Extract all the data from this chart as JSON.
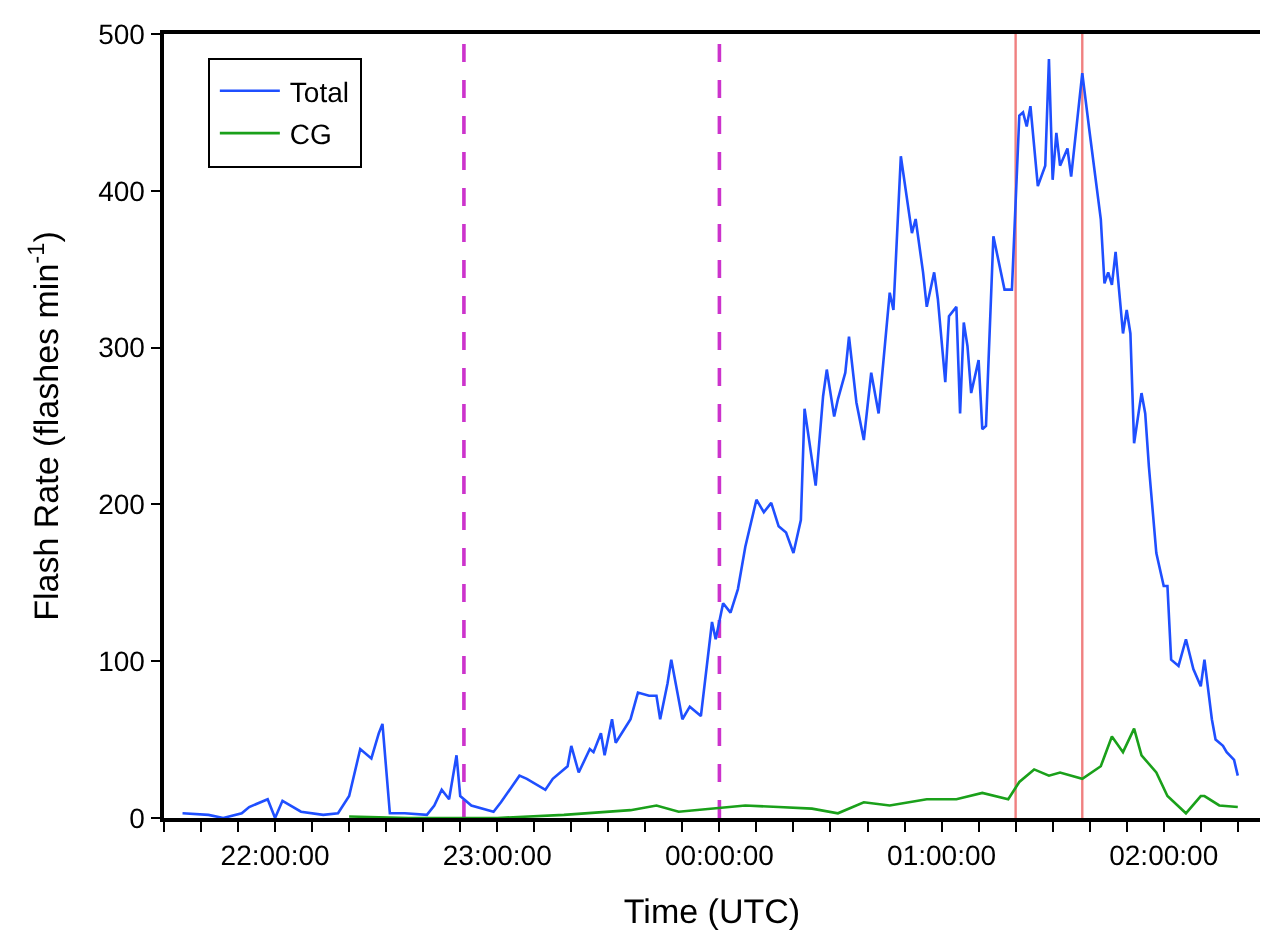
{
  "chart_data": {
    "type": "line",
    "xlabel": "Time (UTC)",
    "ylabel": "Flash Rate (flashes min$^{-1}$)",
    "xlim": [
      "2000-01-01T21:30",
      "2000-01-02T02:26"
    ],
    "ylim": [
      0,
      500
    ],
    "xticks": [
      {
        "value": "2000-01-01T21:30",
        "label": null
      },
      {
        "value": "2000-01-01T21:40",
        "label": null
      },
      {
        "value": "2000-01-01T21:50",
        "label": null
      },
      {
        "value": "2000-01-01T22:00",
        "label": "22:00:00"
      },
      {
        "value": "2000-01-01T22:10",
        "label": null
      },
      {
        "value": "2000-01-01T22:20",
        "label": null
      },
      {
        "value": "2000-01-01T22:30",
        "label": null
      },
      {
        "value": "2000-01-01T22:40",
        "label": null
      },
      {
        "value": "2000-01-01T22:50",
        "label": null
      },
      {
        "value": "2000-01-01T23:00",
        "label": "23:00:00"
      },
      {
        "value": "2000-01-01T23:10",
        "label": null
      },
      {
        "value": "2000-01-01T23:20",
        "label": null
      },
      {
        "value": "2000-01-01T23:30",
        "label": null
      },
      {
        "value": "2000-01-01T23:40",
        "label": null
      },
      {
        "value": "2000-01-01T23:50",
        "label": null
      },
      {
        "value": "2000-01-02T00:00",
        "label": "00:00:00"
      },
      {
        "value": "2000-01-02T00:10",
        "label": null
      },
      {
        "value": "2000-01-02T00:20",
        "label": null
      },
      {
        "value": "2000-01-02T00:30",
        "label": null
      },
      {
        "value": "2000-01-02T00:40",
        "label": null
      },
      {
        "value": "2000-01-02T00:50",
        "label": null
      },
      {
        "value": "2000-01-02T01:00",
        "label": "01:00:00"
      },
      {
        "value": "2000-01-02T01:10",
        "label": null
      },
      {
        "value": "2000-01-02T01:20",
        "label": null
      },
      {
        "value": "2000-01-02T01:30",
        "label": null
      },
      {
        "value": "2000-01-02T01:40",
        "label": null
      },
      {
        "value": "2000-01-02T01:50",
        "label": null
      },
      {
        "value": "2000-01-02T02:00",
        "label": "02:00:00"
      },
      {
        "value": "2000-01-02T02:10",
        "label": null
      },
      {
        "value": "2000-01-02T02:20",
        "label": null
      }
    ],
    "yticks": [
      0,
      100,
      200,
      300,
      400,
      500
    ],
    "grid": false,
    "legend": "top left",
    "marker": "none",
    "line_style": "solid",
    "series": [
      {
        "name": "Total",
        "color": "#1f4fff",
        "x": [
          "2000-01-01T21:35",
          "2000-01-01T21:42",
          "2000-01-01T21:46",
          "2000-01-01T21:51",
          "2000-01-01T21:53",
          "2000-01-01T21:58",
          "2000-01-01T22:00",
          "2000-01-01T22:02",
          "2000-01-01T22:07",
          "2000-01-01T22:13",
          "2000-01-01T22:17",
          "2000-01-01T22:20",
          "2000-01-01T22:23",
          "2000-01-01T22:26",
          "2000-01-01T22:28",
          "2000-01-01T22:29",
          "2000-01-01T22:31",
          "2000-01-01T22:35",
          "2000-01-01T22:41",
          "2000-01-01T22:43",
          "2000-01-01T22:45",
          "2000-01-01T22:47",
          "2000-01-01T22:49",
          "2000-01-01T22:50",
          "2000-01-01T22:53",
          "2000-01-01T22:59",
          "2000-01-01T23:01",
          "2000-01-01T23:06",
          "2000-01-01T23:08",
          "2000-01-01T23:13",
          "2000-01-01T23:15",
          "2000-01-01T23:19",
          "2000-01-01T23:20",
          "2000-01-01T23:22",
          "2000-01-01T23:25",
          "2000-01-01T23:26",
          "2000-01-01T23:28",
          "2000-01-01T23:29",
          "2000-01-01T23:31",
          "2000-01-01T23:32",
          "2000-01-01T23:36",
          "2000-01-01T23:38",
          "2000-01-01T23:41",
          "2000-01-01T23:43",
          "2000-01-01T23:44",
          "2000-01-01T23:46",
          "2000-01-01T23:47",
          "2000-01-01T23:50",
          "2000-01-01T23:52",
          "2000-01-01T23:55",
          "2000-01-01T23:58",
          "2000-01-01T23:59",
          "2000-01-02T00:01",
          "2000-01-02T00:03",
          "2000-01-02T00:05",
          "2000-01-02T00:07",
          "2000-01-02T00:10",
          "2000-01-02T00:12",
          "2000-01-02T00:14",
          "2000-01-02T00:16",
          "2000-01-02T00:18",
          "2000-01-02T00:20",
          "2000-01-02T00:22",
          "2000-01-02T00:23",
          "2000-01-02T00:26",
          "2000-01-02T00:28",
          "2000-01-02T00:29",
          "2000-01-02T00:31",
          "2000-01-02T00:32",
          "2000-01-02T00:34",
          "2000-01-02T00:35",
          "2000-01-02T00:37",
          "2000-01-02T00:39",
          "2000-01-02T00:41",
          "2000-01-02T00:43",
          "2000-01-02T00:46",
          "2000-01-02T00:47",
          "2000-01-02T00:49",
          "2000-01-02T00:52",
          "2000-01-02T00:53",
          "2000-01-02T00:55",
          "2000-01-02T00:56",
          "2000-01-02T00:58",
          "2000-01-02T00:59",
          "2000-01-02T01:01",
          "2000-01-02T01:02",
          "2000-01-02T01:04",
          "2000-01-02T01:05",
          "2000-01-02T01:06",
          "2000-01-02T01:07",
          "2000-01-02T01:08",
          "2000-01-02T01:10",
          "2000-01-02T01:11",
          "2000-01-02T01:12",
          "2000-01-02T01:14",
          "2000-01-02T01:17",
          "2000-01-02T01:19",
          "2000-01-02T01:21",
          "2000-01-02T01:22",
          "2000-01-02T01:23",
          "2000-01-02T01:24",
          "2000-01-02T01:26",
          "2000-01-02T01:28",
          "2000-01-02T01:29",
          "2000-01-02T01:30",
          "2000-01-02T01:31",
          "2000-01-02T01:32",
          "2000-01-02T01:34",
          "2000-01-02T01:35",
          "2000-01-02T01:38",
          "2000-01-02T01:40",
          "2000-01-02T01:43",
          "2000-01-02T01:44",
          "2000-01-02T01:45",
          "2000-01-02T01:46",
          "2000-01-02T01:47",
          "2000-01-02T01:49",
          "2000-01-02T01:50",
          "2000-01-02T01:51",
          "2000-01-02T01:52",
          "2000-01-02T01:54",
          "2000-01-02T01:55",
          "2000-01-02T01:56",
          "2000-01-02T01:58",
          "2000-01-02T02:00",
          "2000-01-02T02:01",
          "2000-01-02T02:02",
          "2000-01-02T02:04",
          "2000-01-02T02:06",
          "2000-01-02T02:08",
          "2000-01-02T02:10",
          "2000-01-02T02:11",
          "2000-01-02T02:13",
          "2000-01-02T02:14",
          "2000-01-02T02:16",
          "2000-01-02T02:17",
          "2000-01-02T02:19",
          "2000-01-02T02:20"
        ],
        "values": [
          3,
          2,
          0,
          3,
          7,
          12,
          0,
          11,
          4,
          2,
          3,
          14,
          44,
          38,
          54,
          60,
          3,
          3,
          2,
          8,
          18,
          12,
          40,
          14,
          8,
          4,
          10,
          27,
          25,
          18,
          25,
          33,
          46,
          29,
          44,
          42,
          54,
          40,
          63,
          48,
          63,
          80,
          78,
          78,
          63,
          86,
          101,
          63,
          71,
          65,
          125,
          114,
          137,
          131,
          146,
          173,
          203,
          195,
          201,
          186,
          182,
          169,
          190,
          261,
          212,
          269,
          286,
          256,
          267,
          284,
          307,
          265,
          241,
          284,
          258,
          335,
          324,
          422,
          373,
          382,
          348,
          326,
          348,
          331,
          278,
          320,
          326,
          258,
          316,
          301,
          271,
          292,
          248,
          250,
          371,
          337,
          337,
          448,
          450,
          441,
          454,
          403,
          416,
          484,
          407,
          437,
          416,
          427,
          409,
          475,
          437,
          382,
          341,
          348,
          340,
          361,
          309,
          324,
          309,
          239,
          271,
          258,
          224,
          169,
          148,
          148,
          101,
          97,
          114,
          95,
          84,
          101,
          63,
          50,
          46,
          42,
          37,
          27
        ]
      },
      {
        "name": "CG",
        "color": "#1aa01a",
        "x": [
          "2000-01-01T22:20",
          "2000-01-01T22:36",
          "2000-01-01T23:00",
          "2000-01-01T23:18",
          "2000-01-01T23:36",
          "2000-01-01T23:43",
          "2000-01-01T23:49",
          "2000-01-02T00:07",
          "2000-01-02T00:16",
          "2000-01-02T00:25",
          "2000-01-02T00:32",
          "2000-01-02T00:39",
          "2000-01-02T00:46",
          "2000-01-02T00:56",
          "2000-01-02T01:04",
          "2000-01-02T01:11",
          "2000-01-02T01:18",
          "2000-01-02T01:21",
          "2000-01-02T01:25",
          "2000-01-02T01:29",
          "2000-01-02T01:32",
          "2000-01-02T01:38",
          "2000-01-02T01:43",
          "2000-01-02T01:46",
          "2000-01-02T01:49",
          "2000-01-02T01:52",
          "2000-01-02T01:54",
          "2000-01-02T01:58",
          "2000-01-02T02:01",
          "2000-01-02T02:06",
          "2000-01-02T02:10",
          "2000-01-02T02:11",
          "2000-01-02T02:15",
          "2000-01-02T02:20"
        ],
        "values": [
          1,
          0,
          0,
          2,
          5,
          8,
          4,
          8,
          7,
          6,
          3,
          10,
          8,
          12,
          12,
          16,
          12,
          23,
          31,
          27,
          29,
          25,
          33,
          52,
          42,
          57,
          40,
          29,
          14,
          3,
          14,
          14,
          8,
          7
        ]
      }
    ],
    "ref_lines": [
      {
        "axis": "x",
        "value": "2000-01-01T22:51",
        "color": "#cc33cc",
        "line_style": "dashed"
      },
      {
        "axis": "x",
        "value": "2000-01-02T00:00",
        "color": "#cc33cc",
        "line_style": "dashed"
      },
      {
        "axis": "x",
        "value": "2000-01-02T01:20",
        "color": "#f08080",
        "line_style": "solid"
      },
      {
        "axis": "x",
        "value": "2000-01-02T01:38",
        "color": "#f08080",
        "line_style": "solid"
      }
    ]
  }
}
